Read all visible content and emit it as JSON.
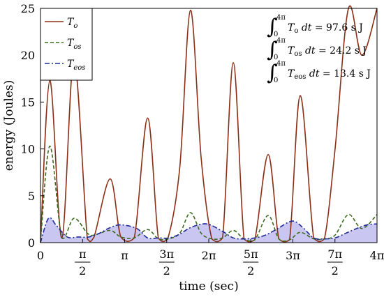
{
  "chart_data": {
    "type": "line",
    "xlabel": "time (sec)",
    "ylabel": "energy (Joules)",
    "xlim": [
      0,
      12.566
    ],
    "ylim": [
      0,
      25
    ],
    "grid": false,
    "legend_position": "top-left",
    "x_ticks": [
      {
        "value": 0,
        "num": "0",
        "den": ""
      },
      {
        "value": 1.5708,
        "num": "π",
        "den": "2"
      },
      {
        "value": 3.1416,
        "num": "π",
        "den": ""
      },
      {
        "value": 4.7124,
        "num": "3π",
        "den": "2"
      },
      {
        "value": 6.2832,
        "num": "2π",
        "den": ""
      },
      {
        "value": 7.854,
        "num": "5π",
        "den": "2"
      },
      {
        "value": 9.4248,
        "num": "3π",
        "den": ""
      },
      {
        "value": 10.9956,
        "num": "7π",
        "den": "2"
      },
      {
        "value": 12.5664,
        "num": "4π",
        "den": ""
      }
    ],
    "y_ticks": [
      0,
      5,
      10,
      15,
      20,
      25
    ],
    "series": [
      {
        "name": "T_o",
        "legend_main": "T",
        "legend_sub": "o",
        "color": "#8b2e16",
        "dash": "solid",
        "fill": false,
        "x": [
          0,
          0.35,
          0.8,
          1.25,
          1.75,
          2.0,
          2.6,
          3.0,
          3.5,
          4.0,
          4.4,
          4.75,
          5.2,
          5.6,
          6.0,
          6.4,
          6.8,
          7.2,
          7.6,
          8.0,
          8.5,
          8.9,
          9.3,
          9.7,
          10.2,
          10.6,
          11.0,
          11.5,
          12.0,
          12.566
        ],
        "y": [
          0,
          17.3,
          0.5,
          19.6,
          0.4,
          0.6,
          6.8,
          0.6,
          0.5,
          13.3,
          0.5,
          0.4,
          8.0,
          24.8,
          9.0,
          0.4,
          0.5,
          19.2,
          0.4,
          0.3,
          9.4,
          0.4,
          0.3,
          15.7,
          0.5,
          0.4,
          10.0,
          25.0,
          20.0,
          25.0
        ]
      },
      {
        "name": "T_os",
        "legend_main": "T",
        "legend_sub": "os",
        "color": "#3d6b1e",
        "dash": "dashed",
        "fill": false,
        "x": [
          0,
          0.35,
          0.8,
          1.25,
          1.75,
          2.0,
          2.6,
          3.0,
          3.5,
          4.0,
          4.4,
          4.75,
          5.2,
          5.6,
          6.0,
          6.4,
          6.8,
          7.2,
          7.6,
          8.0,
          8.5,
          8.9,
          9.3,
          9.7,
          10.2,
          10.6,
          11.0,
          11.5,
          12.0,
          12.566
        ],
        "y": [
          0,
          10.3,
          0.5,
          2.6,
          1.0,
          0.8,
          1.3,
          0.6,
          0.5,
          1.4,
          0.4,
          0.4,
          1.0,
          3.2,
          1.0,
          0.4,
          0.5,
          1.3,
          0.4,
          0.3,
          2.9,
          0.4,
          0.3,
          1.1,
          0.4,
          0.4,
          0.8,
          3.0,
          1.5,
          3.0
        ]
      },
      {
        "name": "T_eos",
        "legend_main": "T",
        "legend_sub": "eos",
        "color": "#1f2a99",
        "dash": "dashdot",
        "fill": true,
        "fill_color": "#c9c6f2",
        "x": [
          0,
          0.3,
          0.6,
          1.0,
          1.4,
          1.8,
          2.2,
          2.6,
          3.0,
          3.6,
          4.0,
          4.4,
          4.8,
          5.2,
          5.6,
          6.2,
          6.8,
          7.2,
          7.6,
          8.0,
          8.4,
          8.8,
          9.4,
          9.8,
          10.2,
          10.6,
          11.0,
          11.4,
          11.8,
          12.2,
          12.566
        ],
        "y": [
          0,
          2.6,
          1.8,
          0.6,
          0.6,
          0.6,
          1.0,
          1.6,
          1.9,
          1.5,
          0.5,
          0.5,
          0.5,
          0.9,
          1.6,
          2.0,
          1.2,
          0.5,
          0.4,
          0.5,
          0.8,
          1.4,
          2.3,
          1.6,
          0.5,
          0.4,
          0.5,
          1.0,
          1.5,
          1.9,
          2.0
        ]
      }
    ],
    "annotations": [
      {
        "upper": "4π",
        "lower": "0",
        "integrand_main": "T",
        "integrand_sub": "o",
        "dt": "dt",
        "value": "97.6 s J"
      },
      {
        "upper": "4π",
        "lower": "0",
        "integrand_main": "T",
        "integrand_sub": "os",
        "dt": "dt",
        "value": "24.2 s J"
      },
      {
        "upper": "4π",
        "lower": "0",
        "integrand_main": "T",
        "integrand_sub": "eos",
        "dt": "dt",
        "value": "13.4 s J"
      }
    ]
  }
}
